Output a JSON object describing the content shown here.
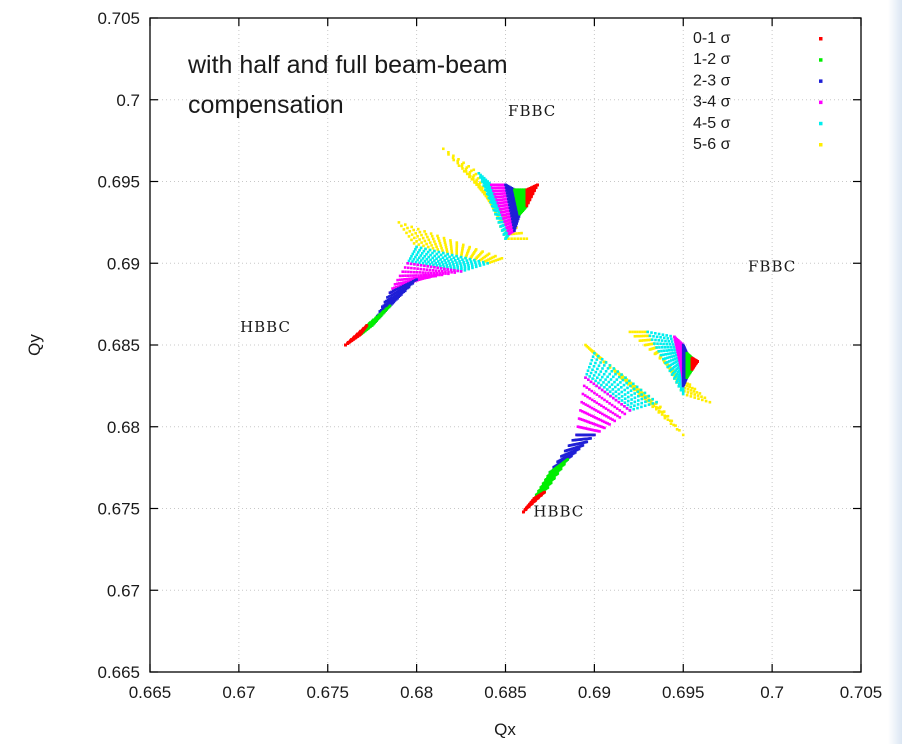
{
  "page": {
    "title": "with half and full beam-beam",
    "subtitle": "compensation"
  },
  "chart_data": {
    "type": "scatter",
    "title": "",
    "xlabel": "Qx",
    "ylabel": "Qy",
    "xlim": [
      0.665,
      0.705
    ],
    "ylim": [
      0.665,
      0.705
    ],
    "x_ticks": [
      "0.665",
      "0.67",
      "0.675",
      "0.68",
      "0.685",
      "0.69",
      "0.695",
      "0.7",
      "0.705"
    ],
    "y_ticks": [
      "0.665",
      "0.67",
      "0.675",
      "0.68",
      "0.685",
      "0.69",
      "0.695",
      "0.7",
      "0.705"
    ],
    "grid": true,
    "legend_position": "top-right",
    "series": [
      {
        "name": "0-1 σ",
        "color": "#ff0000"
      },
      {
        "name": "1-2 σ",
        "color": "#00ee00"
      },
      {
        "name": "2-3 σ",
        "color": "#1f1fd6"
      },
      {
        "name": "3-4 σ",
        "color": "#ff00ff"
      },
      {
        "name": "4-5 σ",
        "color": "#00eeee"
      },
      {
        "name": "5-6 σ",
        "color": "#ffee00"
      }
    ],
    "footprints": [
      {
        "group": 1,
        "type": "HBBC",
        "origin": [
          0.676,
          0.685
        ],
        "spread": [
          [
            [
              0.6768,
              0.6856
            ],
            [
              0.6772,
              0.6862
            ]
          ],
          [
            [
              0.6775,
              0.6862
            ],
            [
              0.6785,
              0.6874
            ]
          ],
          [
            [
              0.6785,
              0.6882
            ],
            [
              0.68,
              0.689
            ]
          ],
          [
            [
              0.6795,
              0.69
            ],
            [
              0.6825,
              0.6895
            ]
          ],
          [
            [
              0.68,
              0.691
            ],
            [
              0.684,
              0.69
            ]
          ],
          [
            [
              0.679,
              0.6925
            ],
            [
              0.6848,
              0.6903
            ]
          ]
        ]
      },
      {
        "group": 2,
        "type": "FBBC",
        "origin": [
          0.6868,
          0.6948
        ],
        "spread": [
          [
            [
              0.6862,
              0.6945
            ],
            [
              0.6862,
              0.6935
            ]
          ],
          [
            [
              0.6855,
              0.6945
            ],
            [
              0.6858,
              0.693
            ]
          ],
          [
            [
              0.685,
              0.6948
            ],
            [
              0.6855,
              0.692
            ]
          ],
          [
            [
              0.6842,
              0.6948
            ],
            [
              0.6852,
              0.6918
            ]
          ],
          [
            [
              0.6835,
              0.6955
            ],
            [
              0.685,
              0.6915
            ]
          ],
          [
            [
              0.6815,
              0.697
            ],
            [
              0.6862,
              0.6915
            ]
          ]
        ]
      },
      {
        "group": 3,
        "type": "HBBC",
        "origin": [
          0.686,
          0.6748
        ],
        "spread": [
          [
            [
              0.6866,
              0.6756
            ],
            [
              0.6872,
              0.676
            ]
          ],
          [
            [
              0.6875,
              0.6772
            ],
            [
              0.6885,
              0.678
            ]
          ],
          [
            [
              0.689,
              0.6795
            ],
            [
              0.69,
              0.6795
            ]
          ],
          [
            [
              0.6895,
              0.683
            ],
            [
              0.692,
              0.681
            ]
          ],
          [
            [
              0.69,
              0.6845
            ],
            [
              0.6935,
              0.6815
            ]
          ],
          [
            [
              0.6895,
              0.685
            ],
            [
              0.695,
              0.6795
            ]
          ]
        ]
      },
      {
        "group": 4,
        "type": "FBBC",
        "origin": [
          0.6958,
          0.684
        ],
        "spread": [
          [
            [
              0.6955,
              0.6842
            ],
            [
              0.6955,
              0.6835
            ]
          ],
          [
            [
              0.6952,
              0.6845
            ],
            [
              0.6952,
              0.683
            ]
          ],
          [
            [
              0.695,
              0.685
            ],
            [
              0.695,
              0.6825
            ]
          ],
          [
            [
              0.6945,
              0.6855
            ],
            [
              0.695,
              0.683
            ]
          ],
          [
            [
              0.693,
              0.6858
            ],
            [
              0.695,
              0.682
            ]
          ],
          [
            [
              0.692,
              0.6858
            ],
            [
              0.6965,
              0.6815
            ]
          ]
        ]
      }
    ],
    "annotations": [
      {
        "text": "FBBC",
        "x": 0.6865,
        "y": 0.699
      },
      {
        "text": "FBBC",
        "x": 0.7,
        "y": 0.6895
      },
      {
        "text": "HBBC",
        "x": 0.6715,
        "y": 0.6858
      },
      {
        "text": "HBBC",
        "x": 0.688,
        "y": 0.6745
      }
    ]
  }
}
